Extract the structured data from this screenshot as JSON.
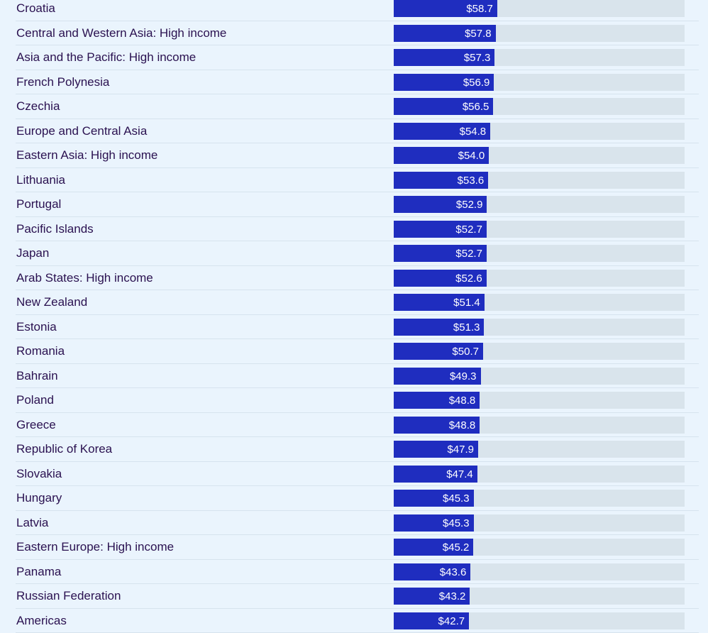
{
  "chart_data": {
    "type": "bar",
    "orientation": "horizontal",
    "value_prefix": "$",
    "xlim": [
      0,
      165
    ],
    "colors": {
      "bar": "#1f2dbf",
      "track": "#d9e4ec",
      "background": "#eaf4fd",
      "label": "#2a1150"
    },
    "categories": [
      "Croatia",
      "Central and Western Asia: High income",
      "Asia and the Pacific: High income",
      "French Polynesia",
      "Czechia",
      "Europe and Central Asia",
      "Eastern Asia: High income",
      "Lithuania",
      "Portugal",
      "Pacific Islands",
      "Japan",
      "Arab States: High income",
      "New Zealand",
      "Estonia",
      "Romania",
      "Bahrain",
      "Poland",
      "Greece",
      "Republic of Korea",
      "Slovakia",
      "Hungary",
      "Latvia",
      "Eastern Europe: High income",
      "Panama",
      "Russian Federation",
      "Americas"
    ],
    "values": [
      58.7,
      57.8,
      57.3,
      56.9,
      56.5,
      54.8,
      54.0,
      53.6,
      52.9,
      52.7,
      52.7,
      52.6,
      51.4,
      51.3,
      50.7,
      49.3,
      48.8,
      48.8,
      47.9,
      47.4,
      45.3,
      45.3,
      45.2,
      43.6,
      43.2,
      42.7
    ],
    "labels": [
      "$58.7",
      "$57.8",
      "$57.3",
      "$56.9",
      "$56.5",
      "$54.8",
      "$54.0",
      "$53.6",
      "$52.9",
      "$52.7",
      "$52.7",
      "$52.6",
      "$51.4",
      "$51.3",
      "$50.7",
      "$49.3",
      "$48.8",
      "$48.8",
      "$47.9",
      "$47.4",
      "$45.3",
      "$45.3",
      "$45.2",
      "$43.6",
      "$43.2",
      "$42.7"
    ]
  }
}
